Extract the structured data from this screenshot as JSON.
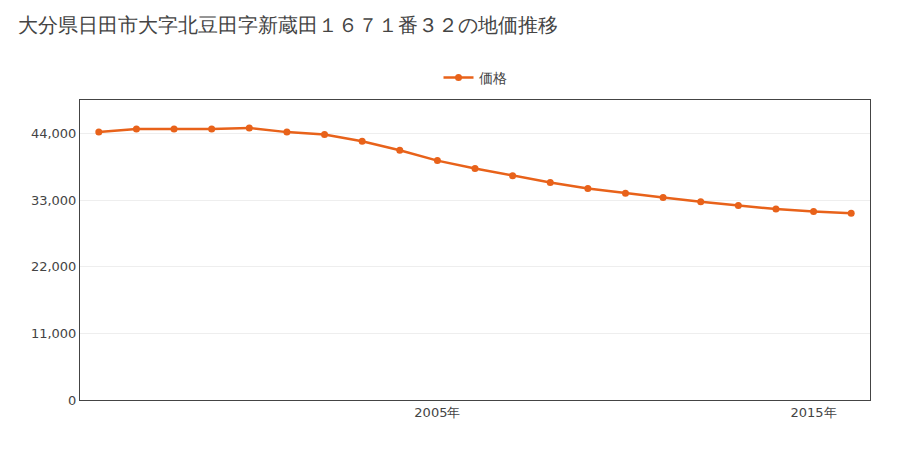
{
  "chart_data": {
    "type": "line",
    "title": "大分県日田市大字北豆田字新蔵田１６７１番３２の地価推移",
    "x": [
      1996,
      1997,
      1998,
      1999,
      2000,
      2001,
      2002,
      2003,
      2004,
      2005,
      2006,
      2007,
      2008,
      2009,
      2010,
      2011,
      2012,
      2013,
      2014,
      2015,
      2016
    ],
    "series": [
      {
        "name": "価格",
        "color": "#e8621a",
        "marker": "circle",
        "values": [
          44200,
          44700,
          44700,
          44700,
          44900,
          44200,
          43800,
          42700,
          41200,
          39500,
          38200,
          37000,
          35900,
          34900,
          34100,
          33400,
          32700,
          32100,
          31500,
          31100,
          30800
        ]
      }
    ],
    "xlim": [
      1995.5,
      2016.5
    ],
    "xticks": [
      {
        "value": 2005,
        "label": "2005年"
      },
      {
        "value": 2015,
        "label": "2015年"
      }
    ],
    "ylim": [
      0,
      49500
    ],
    "yticks": [
      0,
      {
        "value": 11000,
        "label": "11,000"
      },
      {
        "value": 22000,
        "label": "22,000"
      },
      {
        "value": 33000,
        "label": "33,000"
      },
      {
        "value": 44000,
        "label": "44,000"
      }
    ],
    "grid": "y",
    "legend": "top"
  }
}
